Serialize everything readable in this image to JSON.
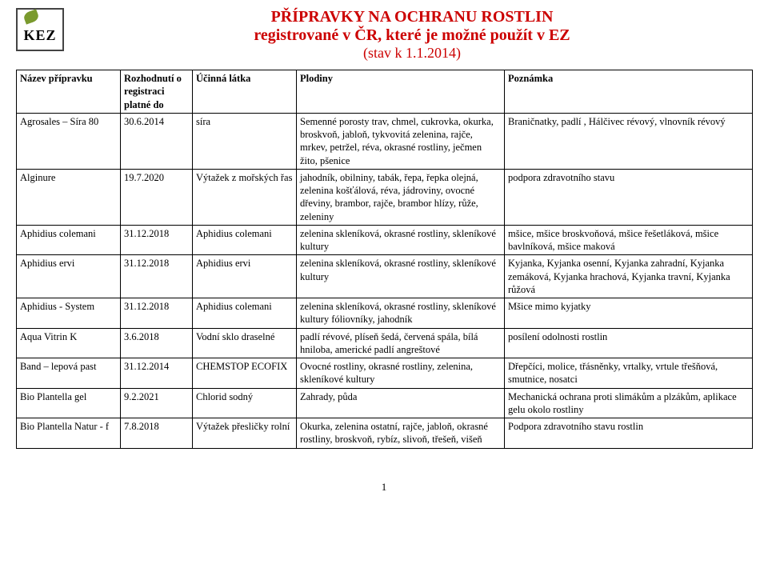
{
  "title": {
    "line1": "PŘÍPRAVKY NA OCHRANU ROSTLIN",
    "line2": "registrované v ČR, které je možné použít v EZ",
    "line3": "(stav k 1.1.2014)"
  },
  "logo_text": "KEZ",
  "headers": {
    "c1": "Název přípravku",
    "c2": "Rozhodnutí o registraci platné do",
    "c3": "Účinná látka",
    "c4": "Plodiny",
    "c5": "Poznámka"
  },
  "rows": [
    {
      "name": "Agrosales – Síra 80",
      "date": "30.6.2014",
      "substance": "síra",
      "crops": "Semenné porosty trav, chmel, cukrovka, okurka, broskvoň, jabloň, tykvovitá zelenina, rajče, mrkev, petržel, réva, okrasné rostliny, ječmen žito, pšenice",
      "note": "Braničnatky, padlí , Hálčivec révový, vlnovník révový"
    },
    {
      "name": "Alginure",
      "date": "19.7.2020",
      "substance": "Výtažek z mořských řas",
      "crops": "jahodník, obilniny, tabák, řepa, řepka olejná, zelenina košťálová, réva, jádroviny, ovocné dřeviny, brambor, rajče, brambor hlízy, růže, zeleniny",
      "note": "podpora zdravotního stavu"
    },
    {
      "name": "Aphidius colemani",
      "date": "31.12.2018",
      "substance": "Aphidius colemani",
      "crops": "zelenina skleníková, okrasné rostliny, skleníkové kultury",
      "note": "mšice, mšice broskvoňová, mšice řešetláková, mšice bavlníková, mšice maková"
    },
    {
      "name": "Aphidius ervi",
      "date": "31.12.2018",
      "substance": "Aphidius ervi",
      "crops": "zelenina skleníková, okrasné rostliny, skleníkové kultury",
      "note": "Kyjanka, Kyjanka osenní, Kyjanka zahradní, Kyjanka zemáková, Kyjanka hrachová, Kyjanka travní, Kyjanka růžová"
    },
    {
      "name": "Aphidius - System",
      "date": "31.12.2018",
      "substance": "Aphidius colemani",
      "crops": "zelenina skleníková, okrasné rostliny, skleníkové kultury fóliovníky, jahodník",
      "note": "Mšice mimo kyjatky"
    },
    {
      "name": "Aqua Vitrin K",
      "date": "3.6.2018",
      "substance": "Vodní sklo draselné",
      "crops": "padlí révové, plíseň šedá, červená spála, bílá hniloba, americké padlí angreštové",
      "note": "posílení odolnosti rostlin"
    },
    {
      "name": "Band – lepová past",
      "date": "31.12.2014",
      "substance": "CHEMSTOP ECOFIX",
      "crops": "Ovocné rostliny, okrasné rostliny, zelenina, skleníkové kultury",
      "note": "Dřepčíci, molice, třásněnky, vrtalky, vrtule třešňová, smutnice, nosatci"
    },
    {
      "name": "Bio Plantella gel",
      "date": "9.2.2021",
      "substance": "Chlorid sodný",
      "crops": "Zahrady, půda",
      "note": "Mechanická ochrana proti slimákům a plzákům, aplikace gelu okolo rostliny"
    },
    {
      "name": "Bio Plantella Natur - f",
      "date": "7.8.2018",
      "substance": "Výtažek přesličky rolní",
      "crops": "Okurka, zelenina ostatní, rajče, jabloň, okrasné rostliny, broskvoň, rybíz, slivoň, třešeň, višeň",
      "note": "Podpora zdravotního stavu rostlin"
    }
  ],
  "page_number": "1"
}
